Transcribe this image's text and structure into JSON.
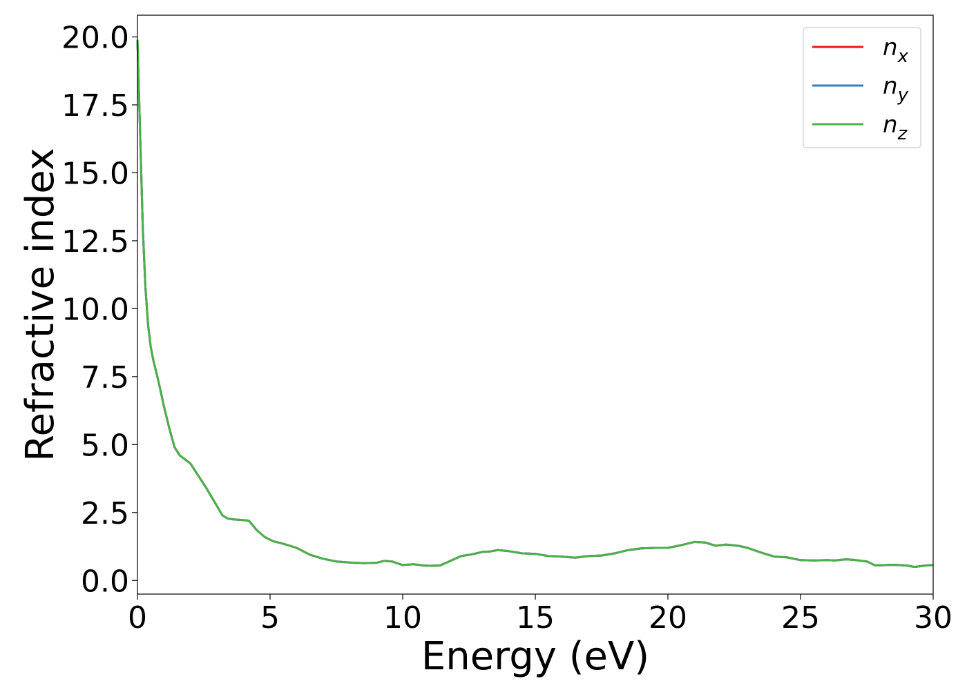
{
  "chart_data": {
    "type": "line",
    "xlabel": "Energy (eV)",
    "ylabel": "Refractive index",
    "xlim": [
      0,
      30
    ],
    "ylim": [
      -0.5,
      20.8
    ],
    "xticks": [
      0,
      5,
      10,
      15,
      20,
      25,
      30
    ],
    "xtick_labels": [
      "0",
      "5",
      "10",
      "15",
      "20",
      "25",
      "30"
    ],
    "yticks": [
      0,
      2.5,
      5,
      7.5,
      10,
      12.5,
      15,
      17.5,
      20
    ],
    "ytick_labels": [
      "0.0",
      "2.5",
      "5.0",
      "7.5",
      "10.0",
      "12.5",
      "15.0",
      "17.5",
      "20.0"
    ],
    "grid": false,
    "legend_position": "top-right",
    "x": [
      0,
      0.1,
      0.2,
      0.3,
      0.4,
      0.5,
      0.6,
      0.7,
      0.8,
      1.0,
      1.2,
      1.4,
      1.6,
      1.8,
      2.0,
      2.3,
      2.6,
      2.9,
      3.2,
      3.4,
      3.6,
      3.9,
      4.2,
      4.5,
      4.8,
      5.1,
      5.5,
      6.0,
      6.5,
      7.0,
      7.5,
      8.0,
      8.5,
      9.0,
      9.3,
      9.6,
      10.0,
      10.4,
      10.8,
      11.0,
      11.4,
      11.8,
      12.2,
      12.6,
      13.0,
      13.3,
      13.6,
      14.0,
      14.5,
      15.0,
      15.5,
      16.0,
      16.5,
      17.0,
      17.5,
      18.0,
      18.5,
      19.0,
      19.5,
      20.0,
      20.5,
      21.0,
      21.4,
      21.8,
      22.2,
      22.7,
      23.0,
      23.5,
      24.0,
      24.5,
      25.0,
      25.5,
      26.0,
      26.3,
      26.7,
      27.0,
      27.5,
      27.8,
      28.0,
      28.5,
      29.0,
      29.3,
      29.7,
      30.0
    ],
    "series": [
      {
        "name": "n_x",
        "color": "#e41a1c",
        "values": [
          19.9,
          16.5,
          13.0,
          10.8,
          9.4,
          8.6,
          8.1,
          7.7,
          7.3,
          6.4,
          5.6,
          4.9,
          4.6,
          4.45,
          4.3,
          3.85,
          3.4,
          2.9,
          2.4,
          2.28,
          2.25,
          2.23,
          2.2,
          1.85,
          1.6,
          1.45,
          1.35,
          1.2,
          0.95,
          0.8,
          0.7,
          0.66,
          0.64,
          0.65,
          0.72,
          0.7,
          0.57,
          0.6,
          0.55,
          0.54,
          0.55,
          0.72,
          0.9,
          0.96,
          1.05,
          1.07,
          1.12,
          1.08,
          1.0,
          0.98,
          0.9,
          0.88,
          0.84,
          0.9,
          0.92,
          1.0,
          1.12,
          1.18,
          1.2,
          1.2,
          1.3,
          1.42,
          1.4,
          1.28,
          1.32,
          1.27,
          1.2,
          1.03,
          0.88,
          0.85,
          0.75,
          0.74,
          0.75,
          0.74,
          0.78,
          0.76,
          0.7,
          0.56,
          0.56,
          0.58,
          0.55,
          0.5,
          0.55,
          0.57
        ]
      },
      {
        "name": "n_y",
        "color": "#377eb8",
        "values": [
          19.9,
          16.5,
          13.0,
          10.8,
          9.4,
          8.6,
          8.1,
          7.7,
          7.3,
          6.4,
          5.6,
          4.9,
          4.6,
          4.45,
          4.3,
          3.85,
          3.4,
          2.9,
          2.4,
          2.28,
          2.25,
          2.23,
          2.2,
          1.85,
          1.6,
          1.45,
          1.35,
          1.2,
          0.95,
          0.8,
          0.7,
          0.66,
          0.64,
          0.65,
          0.72,
          0.7,
          0.57,
          0.6,
          0.55,
          0.54,
          0.55,
          0.72,
          0.9,
          0.96,
          1.05,
          1.07,
          1.12,
          1.08,
          1.0,
          0.98,
          0.9,
          0.88,
          0.84,
          0.9,
          0.92,
          1.0,
          1.12,
          1.18,
          1.2,
          1.2,
          1.3,
          1.42,
          1.4,
          1.28,
          1.32,
          1.27,
          1.2,
          1.03,
          0.88,
          0.85,
          0.75,
          0.74,
          0.75,
          0.74,
          0.78,
          0.76,
          0.7,
          0.56,
          0.56,
          0.58,
          0.55,
          0.5,
          0.55,
          0.57
        ]
      },
      {
        "name": "n_z",
        "color": "#4daf4a",
        "values": [
          19.9,
          16.5,
          13.0,
          10.8,
          9.4,
          8.6,
          8.1,
          7.7,
          7.3,
          6.4,
          5.6,
          4.9,
          4.6,
          4.45,
          4.3,
          3.85,
          3.4,
          2.9,
          2.4,
          2.28,
          2.25,
          2.23,
          2.2,
          1.85,
          1.6,
          1.45,
          1.35,
          1.2,
          0.95,
          0.8,
          0.7,
          0.66,
          0.64,
          0.65,
          0.72,
          0.7,
          0.57,
          0.6,
          0.55,
          0.54,
          0.55,
          0.72,
          0.9,
          0.96,
          1.05,
          1.07,
          1.12,
          1.08,
          1.0,
          0.98,
          0.9,
          0.88,
          0.84,
          0.9,
          0.92,
          1.0,
          1.12,
          1.18,
          1.2,
          1.2,
          1.3,
          1.42,
          1.4,
          1.28,
          1.32,
          1.27,
          1.2,
          1.03,
          0.88,
          0.85,
          0.75,
          0.74,
          0.75,
          0.74,
          0.78,
          0.76,
          0.7,
          0.56,
          0.56,
          0.58,
          0.55,
          0.5,
          0.55,
          0.57
        ]
      }
    ],
    "legend": [
      {
        "base": "n",
        "sub": "x",
        "color": "#e41a1c"
      },
      {
        "base": "n",
        "sub": "y",
        "color": "#377eb8"
      },
      {
        "base": "n",
        "sub": "z",
        "color": "#4daf4a"
      }
    ]
  }
}
